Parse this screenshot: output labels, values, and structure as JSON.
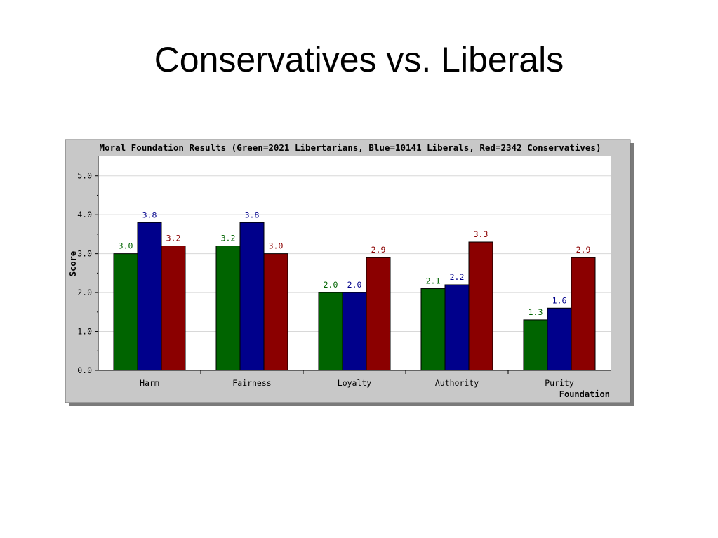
{
  "slide": {
    "title": "Conservatives vs. Liberals"
  },
  "chart_data": {
    "type": "bar",
    "title": "Moral Foundation Results (Green=2021 Libertarians, Blue=10141 Liberals, Red=2342 Conservatives)",
    "xlabel": "Foundation",
    "ylabel": "Score",
    "ylim": [
      0,
      5.5
    ],
    "yticks": [
      "0.0",
      "1.0",
      "2.0",
      "3.0",
      "4.0",
      "5.0"
    ],
    "grid": true,
    "categories": [
      "Harm",
      "Fairness",
      "Loyalty",
      "Authority",
      "Purity"
    ],
    "series": [
      {
        "color": "#006400",
        "values": [
          3.0,
          3.2,
          2.0,
          2.1,
          1.3
        ],
        "labels": [
          "3.0",
          "3.2",
          "2.0",
          "2.1",
          "1.3"
        ]
      },
      {
        "color": "#00008b",
        "values": [
          3.8,
          3.8,
          2.0,
          2.2,
          1.6
        ],
        "labels": [
          "3.8",
          "3.8",
          "2.0",
          "2.2",
          "1.6"
        ]
      },
      {
        "color": "#8b0000",
        "values": [
          3.2,
          3.0,
          2.9,
          3.3,
          2.9
        ],
        "labels": [
          "3.2",
          "3.0",
          "2.9",
          "3.3",
          "2.9"
        ]
      }
    ]
  }
}
